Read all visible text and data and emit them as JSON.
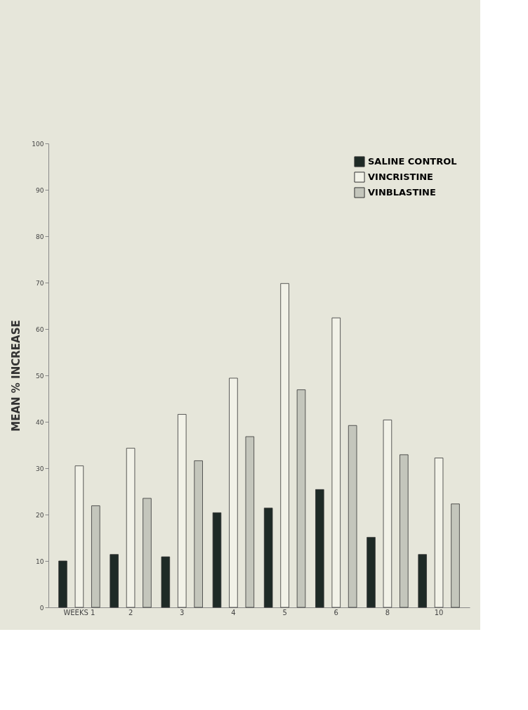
{
  "chart_data": {
    "type": "bar",
    "ylabel": "MEAN % INCREASE",
    "categories": [
      "WEEKS 1",
      "2",
      "3",
      "4",
      "5",
      "6",
      "8",
      "10"
    ],
    "series": [
      {
        "name": "SALINE CONTROL",
        "color": "#1e2a26",
        "values": [
          10,
          11.4,
          10.9,
          20.4,
          21.4,
          25.4,
          15.1,
          11.4
        ]
      },
      {
        "name": "VINCRISTINE",
        "color": "#f2f2e8",
        "values": [
          30.5,
          34.3,
          41.6,
          49.4,
          69.8,
          62.4,
          40.4,
          32.2
        ]
      },
      {
        "name": "VINBLASTINE",
        "color": "#c4c6bc",
        "values": [
          21.9,
          23.5,
          31.6,
          36.8,
          46.9,
          39.2,
          32.9,
          22.3
        ]
      }
    ],
    "ylim": [
      0,
      100
    ],
    "yticks": [
      0,
      10,
      20,
      30,
      40,
      50,
      60,
      70,
      80,
      90,
      100
    ],
    "grid": false,
    "legend": "top right"
  }
}
